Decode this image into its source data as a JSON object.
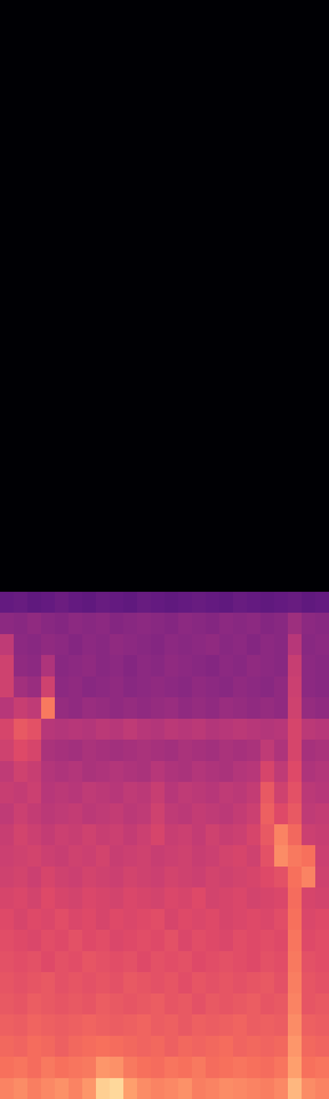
{
  "chart_data": {
    "type": "heatmap",
    "tick_labels": false,
    "zlim": [
      0,
      1
    ],
    "cells": [
      [
        0.74,
        0.76,
        0.73,
        0.75,
        0.77,
        0.74,
        0.78,
        0.9,
        0.92,
        0.8,
        0.76,
        0.74,
        0.75,
        0.77,
        0.73,
        0.74,
        0.76,
        0.75,
        0.74,
        0.73,
        0.75,
        0.85,
        0.76,
        0.74
      ],
      [
        0.7,
        0.71,
        0.69,
        0.72,
        0.7,
        0.71,
        0.72,
        0.78,
        0.77,
        0.72,
        0.7,
        0.69,
        0.71,
        0.7,
        0.72,
        0.69,
        0.7,
        0.71,
        0.7,
        0.69,
        0.71,
        0.8,
        0.7,
        0.71
      ],
      [
        0.68,
        0.67,
        0.69,
        0.68,
        0.66,
        0.68,
        0.69,
        0.7,
        0.69,
        0.68,
        0.67,
        0.68,
        0.66,
        0.68,
        0.67,
        0.68,
        0.69,
        0.67,
        0.68,
        0.67,
        0.68,
        0.78,
        0.68,
        0.67
      ],
      [
        0.66,
        0.65,
        0.67,
        0.66,
        0.65,
        0.66,
        0.67,
        0.66,
        0.65,
        0.66,
        0.67,
        0.65,
        0.66,
        0.64,
        0.66,
        0.65,
        0.66,
        0.67,
        0.65,
        0.66,
        0.65,
        0.76,
        0.66,
        0.65
      ],
      [
        0.64,
        0.63,
        0.65,
        0.64,
        0.63,
        0.64,
        0.63,
        0.65,
        0.64,
        0.63,
        0.64,
        0.65,
        0.63,
        0.64,
        0.62,
        0.64,
        0.63,
        0.64,
        0.65,
        0.63,
        0.64,
        0.74,
        0.63,
        0.64
      ],
      [
        0.63,
        0.62,
        0.63,
        0.64,
        0.62,
        0.63,
        0.62,
        0.63,
        0.62,
        0.64,
        0.63,
        0.62,
        0.63,
        0.61,
        0.63,
        0.62,
        0.63,
        0.62,
        0.63,
        0.64,
        0.62,
        0.73,
        0.63,
        0.62
      ],
      [
        0.62,
        0.61,
        0.62,
        0.6,
        0.62,
        0.61,
        0.63,
        0.62,
        0.61,
        0.62,
        0.6,
        0.62,
        0.61,
        0.62,
        0.6,
        0.61,
        0.62,
        0.61,
        0.6,
        0.62,
        0.61,
        0.72,
        0.62,
        0.61
      ],
      [
        0.61,
        0.6,
        0.59,
        0.61,
        0.6,
        0.62,
        0.6,
        0.61,
        0.59,
        0.6,
        0.61,
        0.6,
        0.62,
        0.59,
        0.61,
        0.6,
        0.59,
        0.61,
        0.6,
        0.61,
        0.6,
        0.71,
        0.6,
        0.61
      ],
      [
        0.6,
        0.58,
        0.6,
        0.59,
        0.61,
        0.59,
        0.6,
        0.58,
        0.6,
        0.59,
        0.6,
        0.61,
        0.58,
        0.6,
        0.59,
        0.6,
        0.58,
        0.59,
        0.6,
        0.59,
        0.61,
        0.7,
        0.59,
        0.6
      ],
      [
        0.58,
        0.59,
        0.57,
        0.6,
        0.58,
        0.57,
        0.59,
        0.58,
        0.57,
        0.59,
        0.58,
        0.57,
        0.59,
        0.58,
        0.6,
        0.57,
        0.58,
        0.59,
        0.57,
        0.58,
        0.59,
        0.69,
        0.58,
        0.57
      ],
      [
        0.56,
        0.57,
        0.55,
        0.58,
        0.56,
        0.55,
        0.57,
        0.56,
        0.55,
        0.57,
        0.56,
        0.55,
        0.57,
        0.56,
        0.55,
        0.57,
        0.56,
        0.57,
        0.58,
        0.6,
        0.62,
        0.7,
        0.74,
        0.56
      ],
      [
        0.55,
        0.56,
        0.57,
        0.55,
        0.54,
        0.56,
        0.55,
        0.57,
        0.54,
        0.55,
        0.56,
        0.54,
        0.55,
        0.56,
        0.54,
        0.55,
        0.57,
        0.58,
        0.56,
        0.62,
        0.76,
        0.72,
        0.7,
        0.55
      ],
      [
        0.54,
        0.57,
        0.55,
        0.53,
        0.55,
        0.54,
        0.56,
        0.54,
        0.55,
        0.53,
        0.55,
        0.58,
        0.54,
        0.55,
        0.53,
        0.56,
        0.54,
        0.55,
        0.58,
        0.64,
        0.74,
        0.68,
        0.55,
        0.54
      ],
      [
        0.52,
        0.55,
        0.53,
        0.51,
        0.52,
        0.53,
        0.51,
        0.52,
        0.53,
        0.51,
        0.52,
        0.56,
        0.52,
        0.51,
        0.53,
        0.52,
        0.51,
        0.53,
        0.55,
        0.66,
        0.6,
        0.64,
        0.52,
        0.53
      ],
      [
        0.54,
        0.53,
        0.55,
        0.5,
        0.51,
        0.5,
        0.52,
        0.51,
        0.5,
        0.52,
        0.51,
        0.54,
        0.5,
        0.52,
        0.51,
        0.5,
        0.52,
        0.51,
        0.53,
        0.64,
        0.56,
        0.62,
        0.51,
        0.5
      ],
      [
        0.52,
        0.56,
        0.54,
        0.49,
        0.48,
        0.49,
        0.47,
        0.48,
        0.49,
        0.48,
        0.47,
        0.5,
        0.48,
        0.47,
        0.49,
        0.48,
        0.47,
        0.49,
        0.5,
        0.58,
        0.52,
        0.6,
        0.48,
        0.49
      ],
      [
        0.56,
        0.6,
        0.58,
        0.47,
        0.46,
        0.45,
        0.47,
        0.46,
        0.45,
        0.46,
        0.47,
        0.46,
        0.45,
        0.47,
        0.46,
        0.45,
        0.47,
        0.46,
        0.47,
        0.52,
        0.48,
        0.58,
        0.46,
        0.47
      ],
      [
        0.58,
        0.64,
        0.62,
        0.5,
        0.49,
        0.5,
        0.49,
        0.51,
        0.5,
        0.52,
        0.5,
        0.49,
        0.51,
        0.5,
        0.51,
        0.49,
        0.5,
        0.51,
        0.5,
        0.49,
        0.5,
        0.58,
        0.51,
        0.5
      ],
      [
        0.5,
        0.54,
        0.52,
        0.72,
        0.42,
        0.41,
        0.43,
        0.42,
        0.41,
        0.42,
        0.41,
        0.42,
        0.43,
        0.41,
        0.42,
        0.41,
        0.43,
        0.42,
        0.41,
        0.42,
        0.41,
        0.56,
        0.42,
        0.41
      ],
      [
        0.56,
        0.45,
        0.43,
        0.56,
        0.4,
        0.41,
        0.39,
        0.4,
        0.41,
        0.39,
        0.4,
        0.41,
        0.4,
        0.39,
        0.41,
        0.4,
        0.39,
        0.41,
        0.4,
        0.39,
        0.41,
        0.55,
        0.4,
        0.39
      ],
      [
        0.56,
        0.41,
        0.4,
        0.48,
        0.39,
        0.4,
        0.41,
        0.39,
        0.4,
        0.38,
        0.4,
        0.39,
        0.41,
        0.4,
        0.39,
        0.38,
        0.4,
        0.39,
        0.41,
        0.4,
        0.39,
        0.54,
        0.4,
        0.39
      ],
      [
        0.52,
        0.4,
        0.39,
        0.41,
        0.4,
        0.38,
        0.4,
        0.39,
        0.41,
        0.4,
        0.39,
        0.38,
        0.4,
        0.39,
        0.4,
        0.41,
        0.39,
        0.4,
        0.38,
        0.4,
        0.39,
        0.5,
        0.39,
        0.4
      ],
      [
        0.4,
        0.39,
        0.41,
        0.39,
        0.38,
        0.4,
        0.39,
        0.4,
        0.38,
        0.39,
        0.4,
        0.39,
        0.38,
        0.4,
        0.39,
        0.38,
        0.4,
        0.39,
        0.4,
        0.38,
        0.39,
        0.44,
        0.4,
        0.39
      ],
      [
        0.3,
        0.31,
        0.29,
        0.3,
        0.32,
        0.3,
        0.29,
        0.31,
        0.3,
        0.29,
        0.31,
        0.3,
        0.29,
        0.3,
        0.31,
        0.3,
        0.29,
        0.31,
        0.3,
        0.29,
        0.3,
        0.31,
        0.29,
        0.3
      ],
      [
        0,
        0,
        0,
        0,
        0,
        0,
        0,
        0,
        0,
        0,
        0,
        0,
        0,
        0,
        0,
        0,
        0,
        0,
        0,
        0,
        0,
        0,
        0,
        0
      ],
      [
        0,
        0,
        0,
        0,
        0,
        0,
        0,
        0,
        0,
        0,
        0,
        0,
        0,
        0,
        0,
        0,
        0,
        0,
        0,
        0,
        0,
        0,
        0,
        0
      ],
      [
        0,
        0,
        0,
        0,
        0,
        0,
        0,
        0,
        0,
        0,
        0,
        0,
        0,
        0,
        0,
        0,
        0,
        0,
        0,
        0,
        0,
        0,
        0,
        0
      ],
      [
        0,
        0,
        0,
        0,
        0,
        0,
        0,
        0,
        0,
        0,
        0,
        0,
        0,
        0,
        0,
        0,
        0,
        0,
        0,
        0,
        0,
        0,
        0,
        0
      ],
      [
        0,
        0,
        0,
        0,
        0,
        0,
        0,
        0,
        0,
        0,
        0,
        0,
        0,
        0,
        0,
        0,
        0,
        0,
        0,
        0,
        0,
        0,
        0,
        0
      ],
      [
        0,
        0,
        0,
        0,
        0,
        0,
        0,
        0,
        0,
        0,
        0,
        0,
        0,
        0,
        0,
        0,
        0,
        0,
        0,
        0,
        0,
        0,
        0,
        0
      ],
      [
        0,
        0,
        0,
        0,
        0,
        0,
        0,
        0,
        0,
        0,
        0,
        0,
        0,
        0,
        0,
        0,
        0,
        0,
        0,
        0,
        0,
        0,
        0,
        0
      ],
      [
        0,
        0,
        0,
        0,
        0,
        0,
        0,
        0,
        0,
        0,
        0,
        0,
        0,
        0,
        0,
        0,
        0,
        0,
        0,
        0,
        0,
        0,
        0,
        0
      ],
      [
        0,
        0,
        0,
        0,
        0,
        0,
        0,
        0,
        0,
        0,
        0,
        0,
        0,
        0,
        0,
        0,
        0,
        0,
        0,
        0,
        0,
        0,
        0,
        0
      ],
      [
        0,
        0,
        0,
        0,
        0,
        0,
        0,
        0,
        0,
        0,
        0,
        0,
        0,
        0,
        0,
        0,
        0,
        0,
        0,
        0,
        0,
        0,
        0,
        0
      ],
      [
        0,
        0,
        0,
        0,
        0,
        0,
        0,
        0,
        0,
        0,
        0,
        0,
        0,
        0,
        0,
        0,
        0,
        0,
        0,
        0,
        0,
        0,
        0,
        0
      ],
      [
        0,
        0,
        0,
        0,
        0,
        0,
        0,
        0,
        0,
        0,
        0,
        0,
        0,
        0,
        0,
        0,
        0,
        0,
        0,
        0,
        0,
        0,
        0,
        0
      ],
      [
        0,
        0,
        0,
        0,
        0,
        0,
        0,
        0,
        0,
        0,
        0,
        0,
        0,
        0,
        0,
        0,
        0,
        0,
        0,
        0,
        0,
        0,
        0,
        0
      ],
      [
        0,
        0,
        0,
        0,
        0,
        0,
        0,
        0,
        0,
        0,
        0,
        0,
        0,
        0,
        0,
        0,
        0,
        0,
        0,
        0,
        0,
        0,
        0,
        0
      ],
      [
        0,
        0,
        0,
        0,
        0,
        0,
        0,
        0,
        0,
        0,
        0,
        0,
        0,
        0,
        0,
        0,
        0,
        0,
        0,
        0,
        0,
        0,
        0,
        0
      ],
      [
        0,
        0,
        0,
        0,
        0,
        0,
        0,
        0,
        0,
        0,
        0,
        0,
        0,
        0,
        0,
        0,
        0,
        0,
        0,
        0,
        0,
        0,
        0,
        0
      ],
      [
        0,
        0,
        0,
        0,
        0,
        0,
        0,
        0,
        0,
        0,
        0,
        0,
        0,
        0,
        0,
        0,
        0,
        0,
        0,
        0,
        0,
        0,
        0,
        0
      ],
      [
        0,
        0,
        0,
        0,
        0,
        0,
        0,
        0,
        0,
        0,
        0,
        0,
        0,
        0,
        0,
        0,
        0,
        0,
        0,
        0,
        0,
        0,
        0,
        0
      ],
      [
        0,
        0,
        0,
        0,
        0,
        0,
        0,
        0,
        0,
        0,
        0,
        0,
        0,
        0,
        0,
        0,
        0,
        0,
        0,
        0,
        0,
        0,
        0,
        0
      ],
      [
        0,
        0,
        0,
        0,
        0,
        0,
        0,
        0,
        0,
        0,
        0,
        0,
        0,
        0,
        0,
        0,
        0,
        0,
        0,
        0,
        0,
        0,
        0,
        0
      ],
      [
        0,
        0,
        0,
        0,
        0,
        0,
        0,
        0,
        0,
        0,
        0,
        0,
        0,
        0,
        0,
        0,
        0,
        0,
        0,
        0,
        0,
        0,
        0,
        0
      ],
      [
        0,
        0,
        0,
        0,
        0,
        0,
        0,
        0,
        0,
        0,
        0,
        0,
        0,
        0,
        0,
        0,
        0,
        0,
        0,
        0,
        0,
        0,
        0,
        0
      ],
      [
        0,
        0,
        0,
        0,
        0,
        0,
        0,
        0,
        0,
        0,
        0,
        0,
        0,
        0,
        0,
        0,
        0,
        0,
        0,
        0,
        0,
        0,
        0,
        0
      ],
      [
        0,
        0,
        0,
        0,
        0,
        0,
        0,
        0,
        0,
        0,
        0,
        0,
        0,
        0,
        0,
        0,
        0,
        0,
        0,
        0,
        0,
        0,
        0,
        0
      ],
      [
        0,
        0,
        0,
        0,
        0,
        0,
        0,
        0,
        0,
        0,
        0,
        0,
        0,
        0,
        0,
        0,
        0,
        0,
        0,
        0,
        0,
        0,
        0,
        0
      ],
      [
        0,
        0,
        0,
        0,
        0,
        0,
        0,
        0,
        0,
        0,
        0,
        0,
        0,
        0,
        0,
        0,
        0,
        0,
        0,
        0,
        0,
        0,
        0,
        0
      ],
      [
        0,
        0,
        0,
        0,
        0,
        0,
        0,
        0,
        0,
        0,
        0,
        0,
        0,
        0,
        0,
        0,
        0,
        0,
        0,
        0,
        0,
        0,
        0,
        0
      ],
      [
        0,
        0,
        0,
        0,
        0,
        0,
        0,
        0,
        0,
        0,
        0,
        0,
        0,
        0,
        0,
        0,
        0,
        0,
        0,
        0,
        0,
        0,
        0,
        0
      ]
    ]
  }
}
